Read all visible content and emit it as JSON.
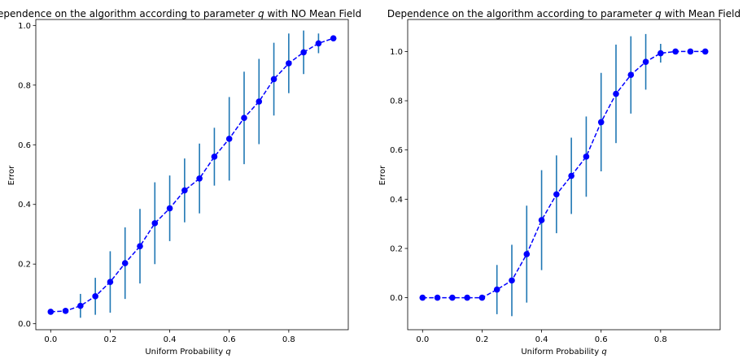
{
  "chart_data": [
    {
      "type": "scatter",
      "title_prefix": "Dependence on the algorithm according to parameter ",
      "title_var": "q",
      "title_suffix": " with NO Mean Field",
      "xlabel_prefix": "Uniform Probability ",
      "xlabel_var": "q",
      "ylabel": "Error",
      "xlim": [
        -0.05,
        1.0
      ],
      "ylim": [
        -0.02,
        1.02
      ],
      "xticks": [
        0.0,
        0.2,
        0.4,
        0.6,
        0.8
      ],
      "xtick_labels": [
        "0.0",
        "0.2",
        "0.4",
        "0.6",
        "0.8"
      ],
      "yticks": [
        0.0,
        0.2,
        0.4,
        0.6,
        0.8,
        1.0
      ],
      "ytick_labels": [
        "0.0",
        "0.2",
        "0.4",
        "0.6",
        "0.8",
        "1.0"
      ],
      "x": [
        0.0,
        0.05,
        0.1,
        0.15,
        0.2,
        0.25,
        0.3,
        0.35,
        0.4,
        0.45,
        0.5,
        0.55,
        0.6,
        0.65,
        0.7,
        0.75,
        0.8,
        0.85,
        0.9,
        0.95
      ],
      "y": [
        0.04,
        0.043,
        0.06,
        0.092,
        0.14,
        0.203,
        0.26,
        0.337,
        0.387,
        0.447,
        0.487,
        0.56,
        0.62,
        0.69,
        0.745,
        0.82,
        0.873,
        0.91,
        0.94,
        0.957
      ],
      "yerr": [
        0.0,
        0.0,
        0.04,
        0.062,
        0.103,
        0.12,
        0.125,
        0.137,
        0.11,
        0.107,
        0.117,
        0.097,
        0.14,
        0.155,
        0.143,
        0.122,
        0.1,
        0.073,
        0.033,
        0.0
      ],
      "line_color": "#0000ff",
      "errorbar_color": "#1f77b4",
      "grid": false
    },
    {
      "type": "scatter",
      "title_prefix": "Dependence on the algorithm according to parameter ",
      "title_var": "q",
      "title_suffix": " with Mean Field",
      "xlabel_prefix": "Uniform Probability ",
      "xlabel_var": "q",
      "ylabel": "Error",
      "xlim": [
        -0.05,
        1.0
      ],
      "ylim": [
        -0.13,
        1.13
      ],
      "xticks": [
        0.0,
        0.2,
        0.4,
        0.6,
        0.8
      ],
      "xtick_labels": [
        "0.0",
        "0.2",
        "0.4",
        "0.6",
        "0.8"
      ],
      "yticks": [
        0.0,
        0.2,
        0.4,
        0.6,
        0.8,
        1.0
      ],
      "ytick_labels": [
        "0.0",
        "0.2",
        "0.4",
        "0.6",
        "0.8",
        "1.0"
      ],
      "x": [
        0.0,
        0.05,
        0.1,
        0.15,
        0.2,
        0.25,
        0.3,
        0.35,
        0.4,
        0.45,
        0.5,
        0.55,
        0.6,
        0.65,
        0.7,
        0.75,
        0.8,
        0.85,
        0.9,
        0.95
      ],
      "y": [
        0.0,
        0.0,
        0.0,
        0.0,
        0.0,
        0.033,
        0.07,
        0.177,
        0.315,
        0.42,
        0.495,
        0.573,
        0.713,
        0.828,
        0.905,
        0.958,
        0.993,
        1.0,
        1.0,
        1.0
      ],
      "yerr": [
        0.0,
        0.0,
        0.0,
        0.0,
        0.0,
        0.1,
        0.145,
        0.197,
        0.203,
        0.158,
        0.155,
        0.163,
        0.2,
        0.2,
        0.157,
        0.113,
        0.038,
        0.0,
        0.0,
        0.0
      ],
      "line_color": "#0000ff",
      "errorbar_color": "#1f77b4",
      "grid": false
    }
  ]
}
